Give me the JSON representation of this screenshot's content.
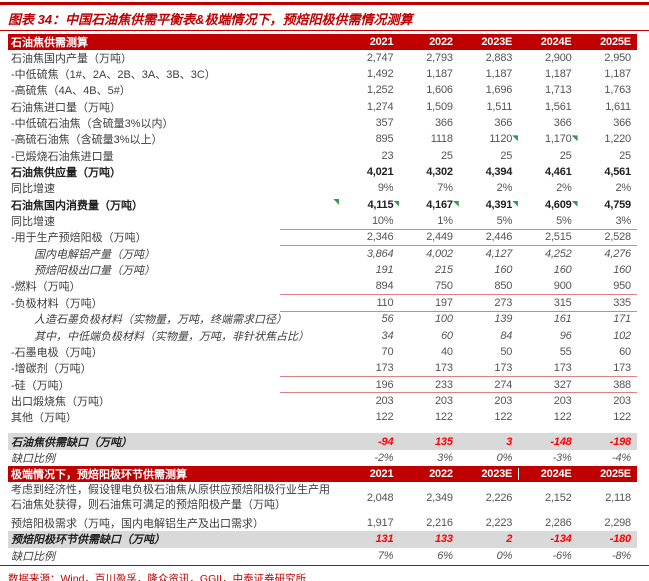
{
  "title": "图表 34：中国石油焦供需平衡表&极端情况下，预焙阳极供需情况测算",
  "source": "数据来源：Wind，百川盈孚，隆众资讯，GGII，中泰证券研究所",
  "colors": {
    "accent": "#C00000",
    "gray_row": "#D9D9D9",
    "value_red": "#FF0000",
    "line_salmon": "#E08080",
    "flag_green": "#2F9E4F",
    "header_text": "#FFFFFF",
    "label_text": "#3D3D3D",
    "num_text": "#555555"
  },
  "years": [
    "2021",
    "2022",
    "2023E",
    "2024E",
    "2025E"
  ],
  "table1": {
    "header_label": "石油焦供需测算",
    "rows": [
      {
        "label": "石油焦国内产量（万吨）",
        "values": [
          "2,747",
          "2,793",
          "2,883",
          "2,900",
          "2,950"
        ]
      },
      {
        "label": "-中低硫焦（1#、2A、2B、3A、3B、3C）",
        "values": [
          "1,492",
          "1,187",
          "1,187",
          "1,187",
          "1,187"
        ]
      },
      {
        "label": "-高硫焦（4A、4B、5#）",
        "values": [
          "1,252",
          "1,606",
          "1,696",
          "1,713",
          "1,763"
        ]
      },
      {
        "label": "石油焦进口量（万吨）",
        "values": [
          "1,274",
          "1,509",
          "1,511",
          "1,561",
          "1,611"
        ]
      },
      {
        "label": "-中低硫石油焦（含硫量3%以内）",
        "values": [
          "357",
          "366",
          "366",
          "366",
          "366"
        ]
      },
      {
        "label": "-高硫石油焦（含硫量3%以上）",
        "values": [
          "895",
          "1118",
          "1120",
          "1,170",
          "1,220"
        ],
        "flags": [
          2,
          3
        ]
      },
      {
        "label": "-已煅烧石油焦进口量",
        "values": [
          "23",
          "25",
          "25",
          "25",
          "25"
        ]
      },
      {
        "label": "石油焦供应量（万吨）",
        "values": [
          "4,021",
          "4,302",
          "4,394",
          "4,461",
          "4,561"
        ],
        "cls": "bold"
      },
      {
        "label": "同比增速",
        "values": [
          "9%",
          "7%",
          "2%",
          "2%",
          "2%"
        ]
      },
      {
        "label": "石油焦国内消费量（万吨）",
        "values": [
          "4,115",
          "4,167",
          "4,391",
          "4,609",
          "4,759"
        ],
        "cls": "bold",
        "label_flag": true,
        "flags": [
          0,
          1,
          2,
          3
        ]
      },
      {
        "label": "同比增速",
        "values": [
          "10%",
          "1%",
          "5%",
          "5%",
          "3%"
        ]
      },
      {
        "label": "-用于生产预焙阳极（万吨）",
        "values": [
          "2,346",
          "2,449",
          "2,446",
          "2,515",
          "2,528"
        ],
        "redline": true
      },
      {
        "label": "国内电解铝产量（万吨）",
        "values": [
          "3,864",
          "4,002",
          "4,127",
          "4,252",
          "4,276"
        ],
        "cls": "sub"
      },
      {
        "label": "预焙阳极出口量（万吨）",
        "values": [
          "191",
          "215",
          "160",
          "160",
          "160"
        ],
        "cls": "sub"
      },
      {
        "label": "-燃料（万吨）",
        "values": [
          "894",
          "750",
          "850",
          "900",
          "950"
        ]
      },
      {
        "label": "-负极材料（万吨）",
        "values": [
          "110",
          "197",
          "273",
          "315",
          "335"
        ],
        "redline": true
      },
      {
        "label": "人造石墨负极材料（实物量，万吨，终端需求口径）",
        "values": [
          "56",
          "100",
          "139",
          "161",
          "171"
        ],
        "cls": "sub"
      },
      {
        "label": "其中，中低端负极材料（实物量，万吨，非针状焦占比）",
        "values": [
          "34",
          "60",
          "84",
          "96",
          "102"
        ],
        "cls": "sub"
      },
      {
        "label": "-石墨电极（万吨）",
        "values": [
          "70",
          "40",
          "50",
          "55",
          "60"
        ]
      },
      {
        "label": "-增碳剂（万吨）",
        "values": [
          "173",
          "173",
          "173",
          "173",
          "173"
        ]
      },
      {
        "label": "-硅（万吨）",
        "values": [
          "196",
          "233",
          "274",
          "327",
          "388"
        ],
        "redline": true
      },
      {
        "label": "出口煅烧焦（万吨）",
        "values": [
          "203",
          "203",
          "203",
          "203",
          "203"
        ]
      },
      {
        "label": "其他（万吨）",
        "values": [
          "122",
          "122",
          "122",
          "122",
          "122"
        ]
      },
      {
        "cls": "spacer"
      },
      {
        "label": "石油焦供需缺口（万吨）",
        "values": [
          "-94",
          "135",
          "3",
          "-148",
          "-198"
        ],
        "cls": "gap"
      },
      {
        "label": "缺口比例",
        "values": [
          "-2%",
          "3%",
          "0%",
          "-3%",
          "-4%"
        ],
        "cls": "pct"
      }
    ]
  },
  "table2": {
    "header_label": "极端情况下，预焙阳极环节供需测算",
    "header_separator_col": 3,
    "rows": [
      {
        "label": "考虑到经济性，假设锂电负极石油焦从原供应预焙阳极行业生产用石油焦处获得，则石油焦可满足的预焙阳极产量（万吨）",
        "values": [
          "2,048",
          "2,349",
          "2,226",
          "2,152",
          "2,118"
        ],
        "cls": "twoline"
      },
      {
        "label": "预焙阳极需求（万吨，国内电解铝生产及出口需求）",
        "values": [
          "1,917",
          "2,216",
          "2,223",
          "2,286",
          "2,298"
        ]
      },
      {
        "label": "预焙阳极环节供需缺口（万吨）",
        "values": [
          "131",
          "133",
          "2",
          "-134",
          "-180"
        ],
        "cls": "gap"
      },
      {
        "label": "缺口比例",
        "values": [
          "7%",
          "6%",
          "0%",
          "-6%",
          "-8%"
        ],
        "cls": "pct"
      }
    ]
  }
}
